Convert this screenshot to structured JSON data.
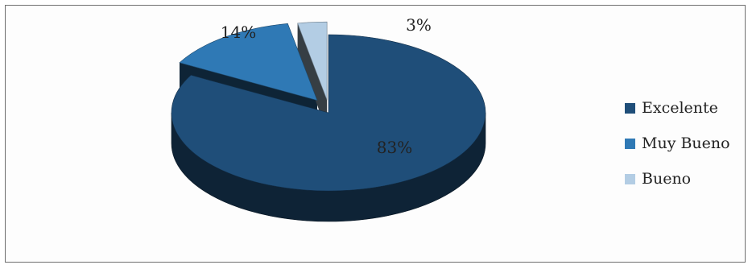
{
  "chart_data": {
    "type": "pie",
    "title": "",
    "categories": [
      "Excelente",
      "Muy Bueno",
      "Bueno"
    ],
    "values": [
      83,
      14,
      3
    ],
    "data_labels": [
      "83%",
      "14%",
      "3%"
    ],
    "colors": {
      "Excelente": "#1f4e79",
      "Muy Bueno": "#2f79b5",
      "Bueno": "#b3cde4"
    },
    "style": "3d-exploded",
    "legend_position": "right"
  }
}
